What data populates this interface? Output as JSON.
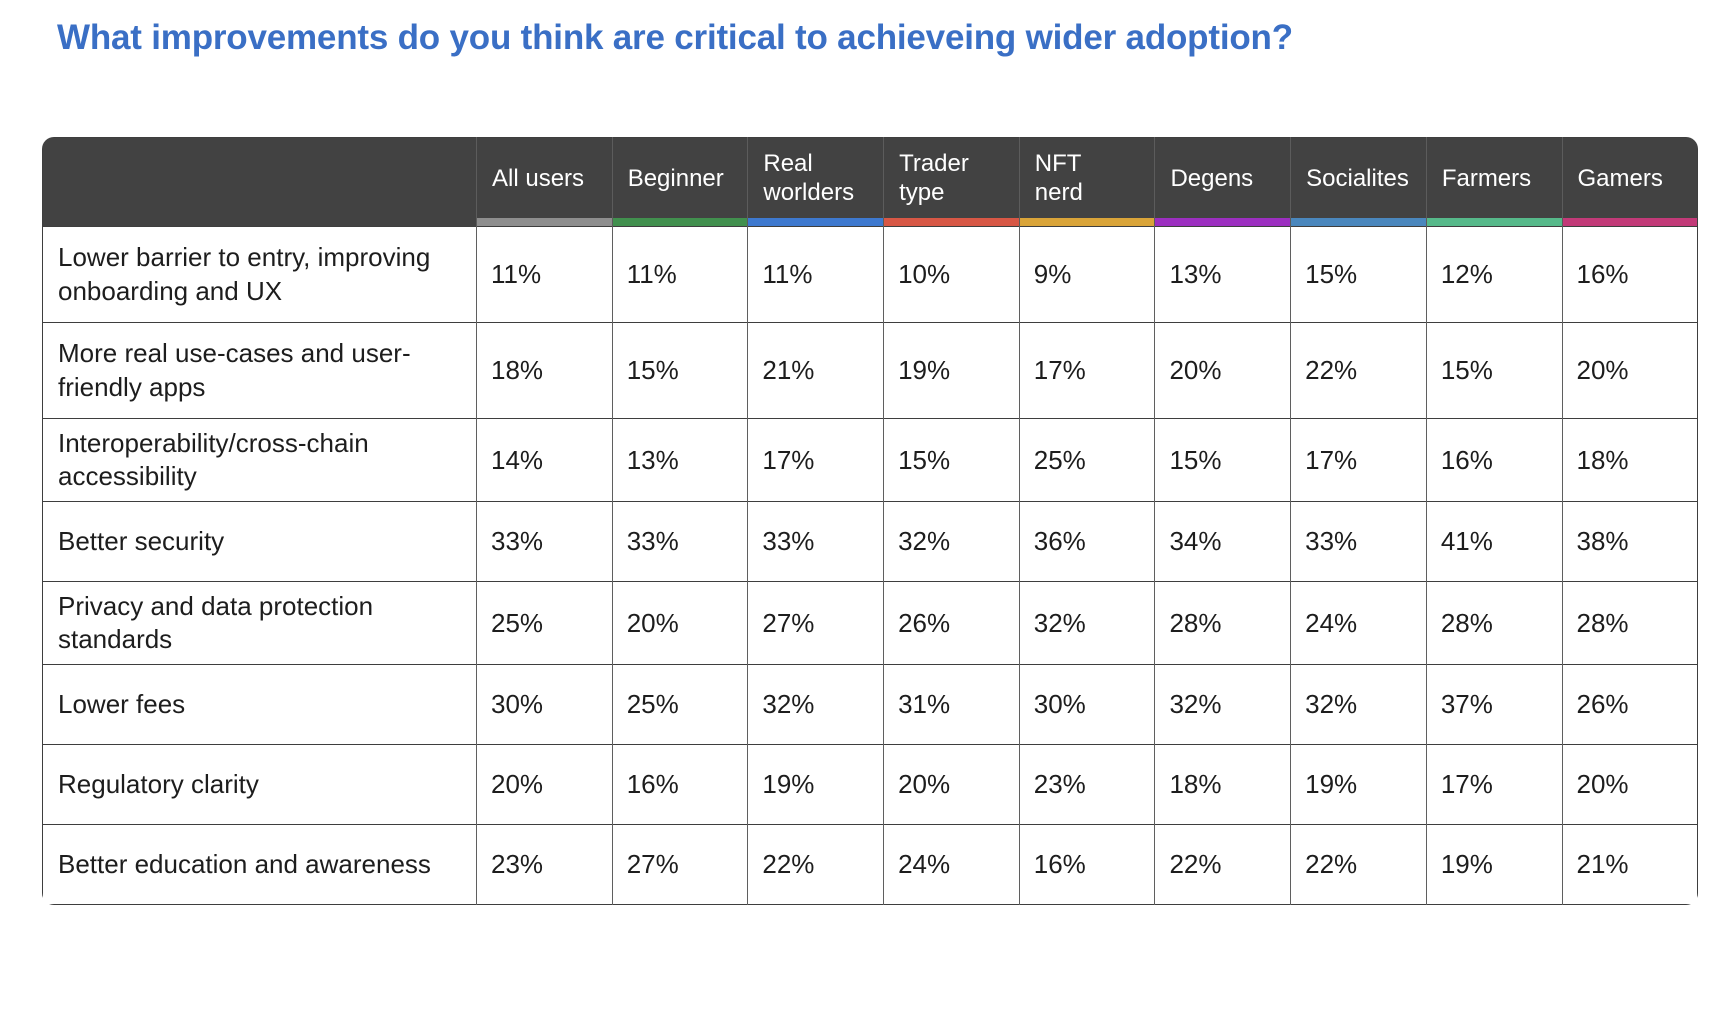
{
  "page": {
    "title": "What improvements do you think are critical to achieveing wider adoption?"
  },
  "colors": {
    "title": "#3a6fc5",
    "header_bg": "#424242",
    "header_text": "#ffffff",
    "grid_line": "#3e3e3e",
    "cell_text": "#1d1d1d"
  },
  "chart_data": {
    "type": "table",
    "title": "What improvements do you think are critical to achieveing wider adoption?",
    "columns": [
      {
        "label": "All users",
        "display": "All users",
        "color": "#8e8e8e"
      },
      {
        "label": "Beginner",
        "display": "Beginner",
        "color": "#41904e"
      },
      {
        "label": "Real worlders",
        "display": "Real\nworlders",
        "color": "#3e79cf"
      },
      {
        "label": "Trader type",
        "display": "Trader\ntype",
        "color": "#d75745"
      },
      {
        "label": "NFT nerd",
        "display": "NFT\nnerd",
        "color": "#d9a439"
      },
      {
        "label": "Degens",
        "display": "Degens",
        "color": "#9c2fc0"
      },
      {
        "label": "Socialites",
        "display": "Socialites",
        "color": "#4a87bd"
      },
      {
        "label": "Farmers",
        "display": "Farmers",
        "color": "#56b98a"
      },
      {
        "label": "Gamers",
        "display": "Gamers",
        "color": "#c23a78"
      }
    ],
    "rows": [
      {
        "label": "Lower barrier to entry, improving onboarding and UX",
        "values": [
          "11%",
          "11%",
          "11%",
          "10%",
          "9%",
          "13%",
          "15%",
          "12%",
          "16%"
        ],
        "values_pct": [
          11,
          11,
          11,
          10,
          9,
          13,
          15,
          12,
          16
        ]
      },
      {
        "label": "More real use-cases and user-friendly apps",
        "values": [
          "18%",
          "15%",
          "21%",
          "19%",
          "17%",
          "20%",
          "22%",
          "15%",
          "20%"
        ],
        "values_pct": [
          18,
          15,
          21,
          19,
          17,
          20,
          22,
          15,
          20
        ]
      },
      {
        "label": "Interoperability/cross-chain accessibility",
        "values": [
          "14%",
          "13%",
          "17%",
          "15%",
          "25%",
          "15%",
          "17%",
          "16%",
          "18%"
        ],
        "values_pct": [
          14,
          13,
          17,
          15,
          25,
          15,
          17,
          16,
          18
        ]
      },
      {
        "label": "Better security",
        "values": [
          "33%",
          "33%",
          "33%",
          "32%",
          "36%",
          "34%",
          "33%",
          "41%",
          "38%"
        ],
        "values_pct": [
          33,
          33,
          33,
          32,
          36,
          34,
          33,
          41,
          38
        ]
      },
      {
        "label": "Privacy and data protection standards",
        "values": [
          "25%",
          "20%",
          "27%",
          "26%",
          "32%",
          "28%",
          "24%",
          "28%",
          "28%"
        ],
        "values_pct": [
          25,
          20,
          27,
          26,
          32,
          28,
          24,
          28,
          28
        ]
      },
      {
        "label": "Lower fees",
        "values": [
          "30%",
          "25%",
          "32%",
          "31%",
          "30%",
          "32%",
          "32%",
          "37%",
          "26%"
        ],
        "values_pct": [
          30,
          25,
          32,
          31,
          30,
          32,
          32,
          37,
          26
        ]
      },
      {
        "label": "Regulatory clarity",
        "values": [
          "20%",
          "16%",
          "19%",
          "20%",
          "23%",
          "18%",
          "19%",
          "17%",
          "20%"
        ],
        "values_pct": [
          20,
          16,
          19,
          20,
          23,
          18,
          19,
          17,
          20
        ]
      },
      {
        "label": "Better education and awareness",
        "values": [
          "23%",
          "27%",
          "22%",
          "24%",
          "16%",
          "22%",
          "22%",
          "19%",
          "21%"
        ],
        "values_pct": [
          23,
          27,
          22,
          24,
          16,
          22,
          22,
          19,
          21
        ]
      }
    ],
    "layout": {
      "legend": "none",
      "grid": "on",
      "header_style": "dark-with-color-underline-per-column"
    }
  }
}
